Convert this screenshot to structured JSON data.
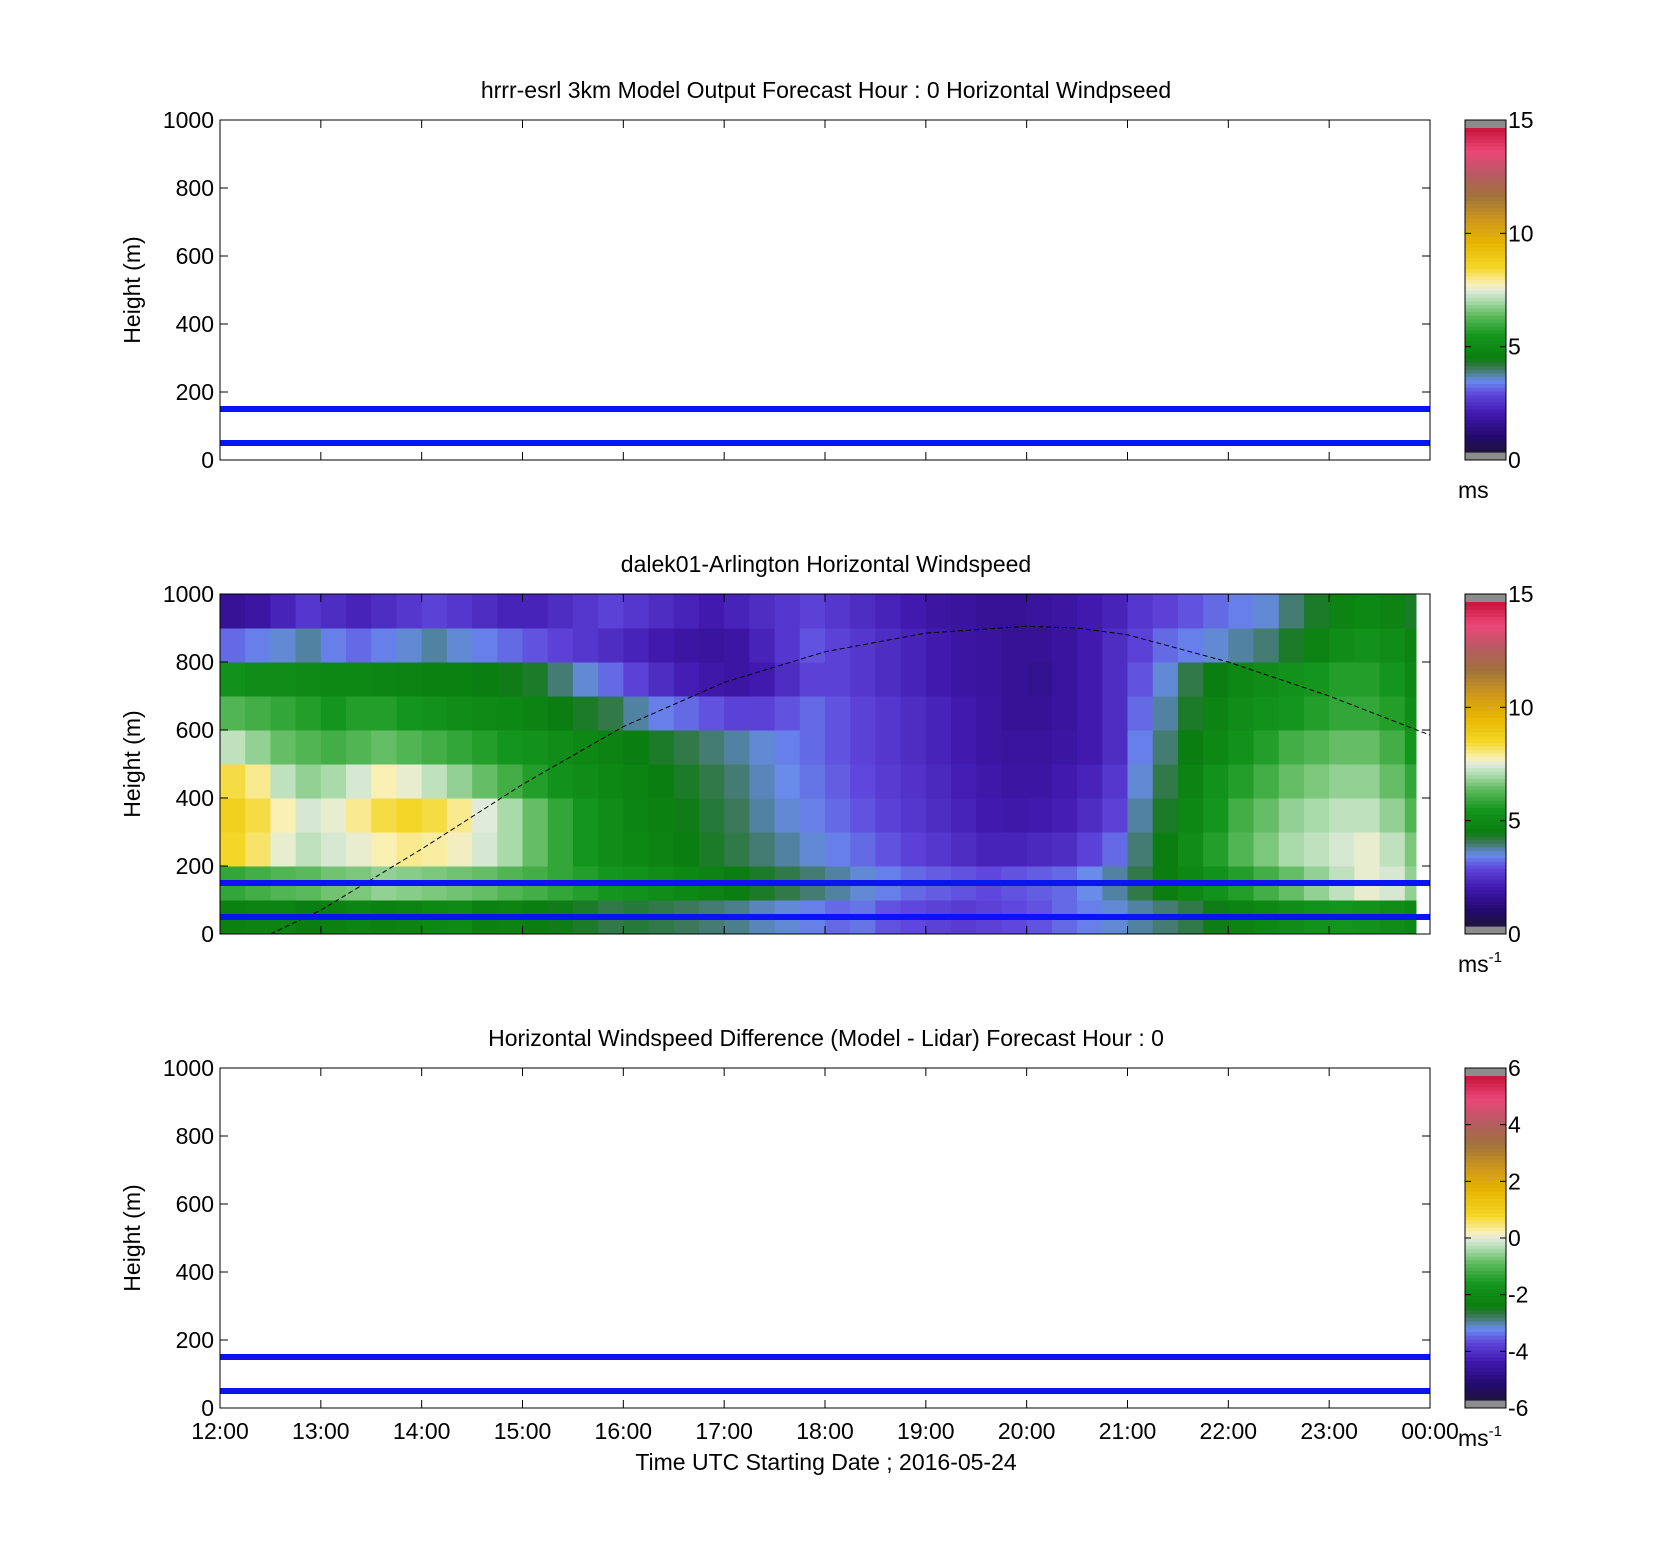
{
  "x_ticks": [
    "12:00",
    "13:00",
    "14:00",
    "15:00",
    "16:00",
    "17:00",
    "18:00",
    "19:00",
    "20:00",
    "21:00",
    "22:00",
    "23:00",
    "00:00"
  ],
  "x_label": "Time UTC  Starting Date ; 2016-05-24",
  "height_ticks": [
    0,
    200,
    400,
    600,
    800,
    1000
  ],
  "colors": {
    "reference_line": "#0a14f0",
    "boundary_layer_curve": "#000000"
  },
  "chart_data": [
    {
      "type": "heatmap",
      "title": "hrrr-esrl 3km Model Output   Forecast Hour : 0 Horizontal Windpseed",
      "ylabel": "Height (m)",
      "ylim": [
        0,
        1000
      ],
      "x_range": [
        "12:00",
        "00:00"
      ],
      "grid": false,
      "reference_lines_m": [
        50,
        150
      ],
      "values": [],
      "colorbar": {
        "min": 0,
        "max": 15,
        "ticks": [
          0,
          5,
          10,
          15
        ],
        "unit": "ms",
        "unit_sup": ""
      }
    },
    {
      "type": "heatmap",
      "title": "dalek01-Arlington  Horizontal Windspeed",
      "ylabel": "Height (m)",
      "ylim": [
        0,
        1000
      ],
      "x_range": [
        "12:00",
        "00:00"
      ],
      "grid": false,
      "reference_lines_m": [
        50,
        150
      ],
      "column_times_utc": [
        "12:00",
        "12:15",
        "12:30",
        "12:45",
        "13:00",
        "13:15",
        "13:30",
        "13:45",
        "14:00",
        "14:15",
        "14:30",
        "14:45",
        "15:00",
        "15:15",
        "15:30",
        "15:45",
        "16:00",
        "16:15",
        "16:30",
        "16:45",
        "17:00",
        "17:15",
        "17:30",
        "17:45",
        "18:00",
        "18:15",
        "18:30",
        "18:45",
        "19:00",
        "19:15",
        "19:30",
        "19:45",
        "20:00",
        "20:15",
        "20:30",
        "20:45",
        "21:00",
        "21:15",
        "21:30",
        "21:45",
        "22:00",
        "22:15",
        "22:30",
        "22:45",
        "23:00",
        "23:15",
        "23:30",
        "23:45"
      ],
      "layer_heights_m": [
        0,
        100,
        200,
        300,
        400,
        500,
        600,
        700,
        800,
        900
      ],
      "values_ms": [
        [
          4.5,
          4.6,
          4.6,
          4.4,
          4.5,
          4.7,
          4.5,
          4.6,
          4.8,
          4.9,
          4.5,
          4.6,
          4.4,
          4.3,
          4.2,
          4.0,
          4.1,
          4.0,
          3.9,
          3.8,
          3.7,
          3.5,
          3.4,
          3.2,
          3.0,
          3.1,
          2.8,
          2.7,
          2.6,
          2.5,
          2.6,
          2.7,
          2.8,
          3.0,
          3.2,
          3.4,
          3.6,
          3.8,
          4.0,
          4.3,
          4.6,
          4.8,
          5.0,
          5.2,
          5.3,
          5.2,
          5.0,
          4.8
        ],
        [
          5.8,
          6.0,
          6.2,
          6.3,
          6.5,
          6.6,
          6.8,
          6.7,
          6.6,
          6.5,
          6.4,
          6.2,
          6.0,
          5.8,
          5.6,
          5.4,
          5.2,
          5.0,
          4.8,
          4.6,
          4.4,
          4.2,
          4.0,
          3.8,
          3.6,
          3.4,
          3.2,
          3.0,
          2.9,
          2.8,
          2.7,
          2.8,
          2.9,
          3.0,
          3.3,
          3.6,
          4.0,
          4.4,
          4.8,
          5.2,
          5.6,
          6.0,
          6.4,
          6.8,
          7.2,
          7.6,
          7.4,
          6.8
        ],
        [
          8.6,
          8.2,
          7.6,
          7.2,
          7.4,
          7.6,
          7.8,
          8.0,
          7.9,
          7.7,
          7.4,
          7.0,
          6.4,
          5.8,
          5.4,
          5.0,
          4.8,
          4.6,
          4.4,
          4.2,
          4.0,
          3.8,
          3.6,
          3.4,
          3.2,
          3.0,
          2.8,
          2.6,
          2.4,
          2.2,
          2.0,
          2.0,
          2.1,
          2.2,
          2.6,
          3.0,
          3.8,
          4.4,
          5.0,
          5.6,
          6.2,
          6.6,
          7.0,
          7.2,
          7.4,
          7.6,
          7.2,
          6.6
        ],
        [
          8.8,
          8.4,
          7.8,
          7.4,
          7.6,
          8.0,
          8.4,
          8.6,
          8.4,
          8.0,
          7.5,
          7.0,
          6.4,
          5.8,
          5.4,
          5.0,
          4.7,
          4.5,
          4.3,
          4.1,
          3.9,
          3.6,
          3.4,
          3.2,
          3.0,
          2.8,
          2.6,
          2.4,
          2.2,
          2.0,
          1.8,
          1.7,
          1.8,
          1.9,
          2.2,
          2.6,
          3.6,
          4.2,
          4.8,
          5.4,
          6.0,
          6.4,
          6.8,
          7.0,
          7.2,
          7.2,
          6.8,
          6.2
        ],
        [
          8.4,
          8.0,
          7.2,
          6.8,
          7.0,
          7.4,
          7.8,
          7.6,
          7.2,
          6.8,
          6.4,
          6.0,
          5.6,
          5.2,
          5.0,
          4.8,
          4.6,
          4.4,
          4.2,
          4.0,
          3.8,
          3.5,
          3.3,
          3.1,
          2.9,
          2.7,
          2.5,
          2.3,
          2.1,
          1.9,
          1.7,
          1.6,
          1.6,
          1.8,
          2.0,
          2.4,
          3.4,
          4.0,
          4.6,
          5.2,
          5.6,
          6.0,
          6.4,
          6.6,
          6.8,
          6.8,
          6.4,
          5.8
        ],
        [
          7.2,
          6.8,
          6.4,
          6.2,
          6.0,
          6.2,
          6.4,
          6.2,
          6.0,
          5.8,
          5.6,
          5.4,
          5.2,
          5.0,
          4.8,
          4.6,
          4.4,
          4.2,
          4.0,
          3.8,
          3.6,
          3.4,
          3.2,
          3.0,
          2.8,
          2.6,
          2.4,
          2.2,
          2.0,
          1.8,
          1.6,
          1.5,
          1.5,
          1.6,
          1.8,
          2.2,
          3.2,
          3.8,
          4.4,
          4.8,
          5.2,
          5.6,
          6.0,
          6.2,
          6.4,
          6.4,
          6.0,
          5.4
        ],
        [
          6.2,
          6.0,
          5.8,
          5.6,
          5.4,
          5.6,
          5.6,
          5.4,
          5.2,
          5.0,
          4.9,
          4.8,
          4.6,
          4.4,
          4.2,
          4.0,
          3.6,
          3.2,
          3.0,
          2.8,
          2.6,
          2.6,
          2.8,
          3.0,
          2.8,
          2.6,
          2.4,
          2.2,
          2.0,
          1.8,
          1.6,
          1.4,
          1.4,
          1.5,
          1.8,
          2.2,
          3.0,
          3.6,
          4.2,
          4.6,
          5.0,
          5.2,
          5.4,
          5.6,
          5.8,
          5.8,
          5.6,
          5.0
        ],
        [
          5.2,
          5.0,
          5.0,
          4.9,
          4.8,
          4.8,
          4.7,
          4.6,
          4.5,
          4.5,
          4.4,
          4.3,
          4.2,
          3.8,
          3.4,
          3.0,
          2.6,
          2.2,
          1.9,
          1.7,
          1.6,
          1.8,
          2.2,
          2.6,
          2.6,
          2.4,
          2.2,
          2.0,
          1.8,
          1.6,
          1.5,
          1.4,
          1.3,
          1.5,
          1.8,
          2.2,
          2.8,
          3.4,
          4.0,
          4.4,
          4.8,
          5.0,
          5.2,
          5.4,
          5.6,
          5.6,
          5.4,
          4.8
        ],
        [
          3.0,
          3.2,
          3.4,
          3.6,
          3.2,
          3.0,
          3.2,
          3.4,
          3.6,
          3.4,
          3.2,
          3.0,
          2.8,
          2.6,
          2.4,
          2.2,
          2.0,
          1.8,
          1.6,
          1.5,
          1.6,
          2.0,
          2.4,
          2.8,
          2.6,
          2.4,
          2.2,
          2.0,
          1.8,
          1.6,
          1.5,
          1.4,
          1.4,
          1.5,
          1.8,
          2.2,
          2.6,
          3.0,
          3.2,
          3.4,
          3.6,
          3.8,
          4.2,
          4.6,
          5.0,
          5.2,
          5.0,
          4.6
        ],
        [
          1.4,
          1.6,
          2.0,
          2.4,
          2.2,
          2.0,
          2.2,
          2.4,
          2.6,
          2.4,
          2.2,
          2.0,
          2.0,
          2.2,
          2.4,
          2.6,
          2.4,
          2.2,
          2.0,
          1.8,
          2.0,
          2.2,
          2.4,
          2.6,
          2.4,
          2.2,
          2.0,
          1.8,
          1.6,
          1.5,
          1.4,
          1.4,
          1.5,
          1.6,
          1.8,
          2.0,
          2.4,
          2.6,
          2.8,
          3.0,
          3.2,
          3.4,
          3.8,
          4.2,
          4.6,
          4.8,
          4.6,
          4.2
        ]
      ],
      "boundary_layer_curve": {
        "time_utc": [
          "12:30",
          "13:00",
          "14:00",
          "15:00",
          "16:00",
          "17:00",
          "18:00",
          "19:00",
          "20:00",
          "20:30",
          "21:00",
          "22:00",
          "23:00",
          "00:00"
        ],
        "height_m": [
          0,
          70,
          250,
          440,
          610,
          740,
          830,
          885,
          905,
          900,
          880,
          800,
          700,
          585
        ]
      },
      "colorbar": {
        "min": 0,
        "max": 15,
        "ticks": [
          0,
          5,
          10,
          15
        ],
        "unit": "ms",
        "unit_sup": "-1"
      }
    },
    {
      "type": "heatmap",
      "title": "Horizontal Windspeed Difference (Model - Lidar) Forecast Hour : 0",
      "ylabel": "Height (m)",
      "ylim": [
        0,
        1000
      ],
      "x_range": [
        "12:00",
        "00:00"
      ],
      "grid": false,
      "reference_lines_m": [
        50,
        150
      ],
      "values": [],
      "colorbar": {
        "min": -6,
        "max": 6,
        "ticks": [
          -6,
          -4,
          -2,
          0,
          2,
          4,
          6
        ],
        "unit": "ms",
        "unit_sup": "-1"
      }
    }
  ]
}
